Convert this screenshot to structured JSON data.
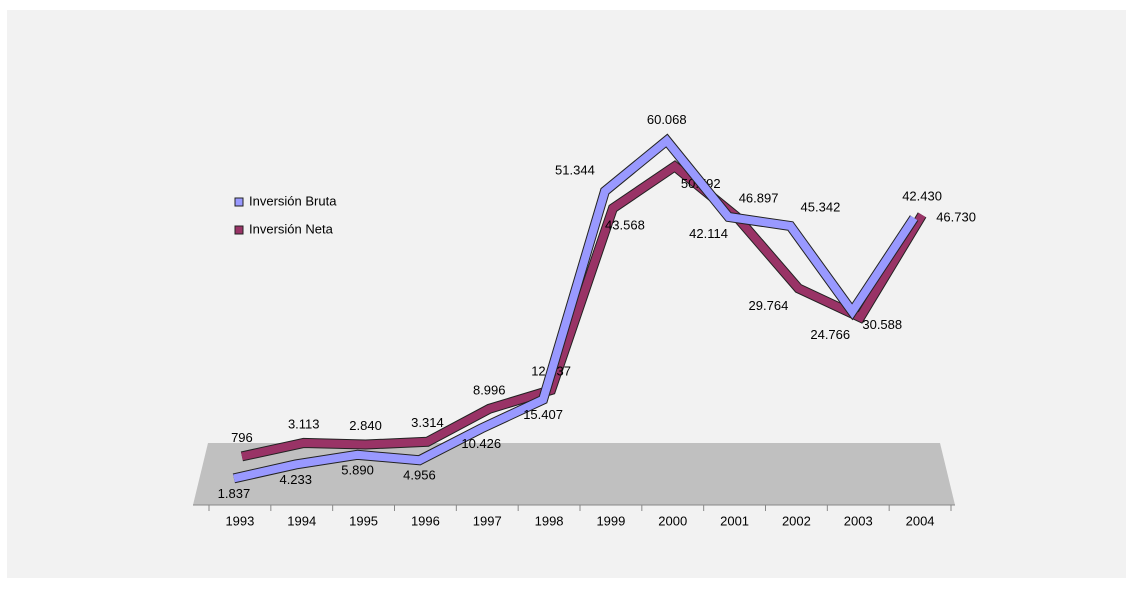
{
  "chart_data": {
    "type": "line",
    "categories": [
      "1993",
      "1994",
      "1995",
      "1996",
      "1997",
      "1998",
      "1999",
      "2000",
      "2001",
      "2002",
      "2003",
      "2004"
    ],
    "series": [
      {
        "name": "Inversión Bruta",
        "color": "#9999ff",
        "values": [
          1837,
          4233,
          5890,
          4956,
          10426,
          15407,
          51344,
          60068,
          46897,
          45342,
          30588,
          46730
        ],
        "value_labels": [
          "1.837",
          "4.233",
          "5.890",
          "4.956",
          "10.426",
          "15.407",
          "51.344",
          "60.068",
          "46.897",
          "45.342",
          "30.588",
          "46.730"
        ]
      },
      {
        "name": "Inversión Neta",
        "color": "#993366",
        "values": [
          796,
          3113,
          2840,
          3314,
          8996,
          12237,
          43568,
          50792,
          42114,
          29764,
          24766,
          42430
        ],
        "value_labels": [
          "796",
          "3.113",
          "2.840",
          "3.314",
          "8.996",
          "12.237",
          "43.568",
          "50.792",
          "42.114",
          "29.764",
          "24.766",
          "42.430"
        ]
      }
    ],
    "ylim": [
      0,
      70000
    ],
    "legend": "left"
  }
}
